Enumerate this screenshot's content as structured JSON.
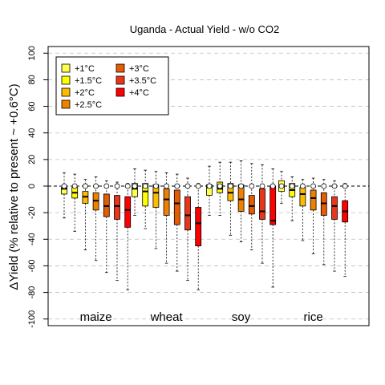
{
  "chart_data": {
    "type": "box",
    "title": "Uganda - Actual Yield - w/o CO2",
    "ylabel": "ΔYield (% relative to present ~ +0.6°C)",
    "ylim": [
      -105,
      105
    ],
    "yticks": [
      -100,
      -80,
      -60,
      -40,
      -20,
      0,
      20,
      40,
      60,
      80,
      100
    ],
    "grid": "horizontal-dashed",
    "legend_position": "top-left",
    "levels": [
      {
        "label": "+1°C",
        "color": "#ffff4d"
      },
      {
        "label": "+1.5°C",
        "color": "#ffff00"
      },
      {
        "label": "+2°C",
        "color": "#ffbb00"
      },
      {
        "label": "+2.5°C",
        "color": "#f08000"
      },
      {
        "label": "+3°C",
        "color": "#e65c00"
      },
      {
        "label": "+3.5°C",
        "color": "#e8361a"
      },
      {
        "label": "+4°C",
        "color": "#ff0000"
      }
    ],
    "crops": [
      {
        "name": "maize",
        "boxes": [
          {
            "level": "+1°C",
            "q1": -6,
            "median": -2,
            "q3": -1,
            "min": -24,
            "max": 10
          },
          {
            "level": "+1.5°C",
            "q1": -9,
            "median": -5,
            "q3": -1,
            "min": -34,
            "max": 9
          },
          {
            "level": "+2°C",
            "q1": -13,
            "median": -8,
            "q3": -4,
            "min": -48,
            "max": 5
          },
          {
            "level": "+2.5°C",
            "q1": -18,
            "median": -11,
            "q3": -5,
            "min": -56,
            "max": 7
          },
          {
            "level": "+3°C",
            "q1": -23,
            "median": -15,
            "q3": -6,
            "min": -65,
            "max": 4
          },
          {
            "level": "+3.5°C",
            "q1": -25,
            "median": -15,
            "q3": -7,
            "min": -71,
            "max": 3
          },
          {
            "level": "+4°C",
            "q1": -31,
            "median": -18,
            "q3": -8,
            "min": -78,
            "max": 2
          }
        ]
      },
      {
        "name": "wheat",
        "boxes": [
          {
            "level": "+1°C",
            "q1": -8,
            "median": -2,
            "q3": 2,
            "min": -22,
            "max": 13
          },
          {
            "level": "+1.5°C",
            "q1": -15,
            "median": -4,
            "q3": 2,
            "min": -32,
            "max": 12
          },
          {
            "level": "+2°C",
            "q1": -16,
            "median": -5,
            "q3": 1,
            "min": -47,
            "max": 11
          },
          {
            "level": "+2.5°C",
            "q1": -22,
            "median": -10,
            "q3": -2,
            "min": -58,
            "max": 10
          },
          {
            "level": "+3°C",
            "q1": -29,
            "median": -13,
            "q3": -3,
            "min": -64,
            "max": 9
          },
          {
            "level": "+3.5°C",
            "q1": -33,
            "median": -22,
            "q3": -8,
            "min": -71,
            "max": 6
          },
          {
            "level": "+4°C",
            "q1": -45,
            "median": -28,
            "q3": -16,
            "min": -78,
            "max": 2
          }
        ]
      },
      {
        "name": "soy",
        "boxes": [
          {
            "level": "+1°C",
            "q1": -7,
            "median": -1,
            "q3": 1,
            "min": -22,
            "max": 15
          },
          {
            "level": "+1.5°C",
            "q1": -5,
            "median": -2,
            "q3": 3,
            "min": -22,
            "max": 18
          },
          {
            "level": "+2°C",
            "q1": -11,
            "median": -5,
            "q3": 2,
            "min": -37,
            "max": 18
          },
          {
            "level": "+2.5°C",
            "q1": -19,
            "median": -10,
            "q3": 1,
            "min": -42,
            "max": 19
          },
          {
            "level": "+3°C",
            "q1": -21,
            "median": -15,
            "q3": -7,
            "min": -48,
            "max": 17
          },
          {
            "level": "+3.5°C",
            "q1": -25,
            "median": -19,
            "q3": -2,
            "min": -58,
            "max": 16
          },
          {
            "level": "+4°C",
            "q1": -29,
            "median": -26,
            "q3": 0,
            "min": -76,
            "max": 13
          }
        ]
      },
      {
        "name": "rice",
        "boxes": [
          {
            "level": "+1°C",
            "q1": -4,
            "median": 0,
            "q3": 4,
            "min": -13,
            "max": 11
          },
          {
            "level": "+1.5°C",
            "q1": -8,
            "median": -3,
            "q3": 2,
            "min": -26,
            "max": 7
          },
          {
            "level": "+2°C",
            "q1": -15,
            "median": -6,
            "q3": -1,
            "min": -41,
            "max": 5
          },
          {
            "level": "+2.5°C",
            "q1": -18,
            "median": -9,
            "q3": -3,
            "min": -51,
            "max": 6
          },
          {
            "level": "+3°C",
            "q1": -22,
            "median": -13,
            "q3": -5,
            "min": -59,
            "max": 5
          },
          {
            "level": "+3.5°C",
            "q1": -25,
            "median": -15,
            "q3": -8,
            "min": -64,
            "max": 4
          },
          {
            "level": "+4°C",
            "q1": -27,
            "median": -19,
            "q3": -11,
            "min": -68,
            "max": 2
          }
        ]
      }
    ]
  }
}
